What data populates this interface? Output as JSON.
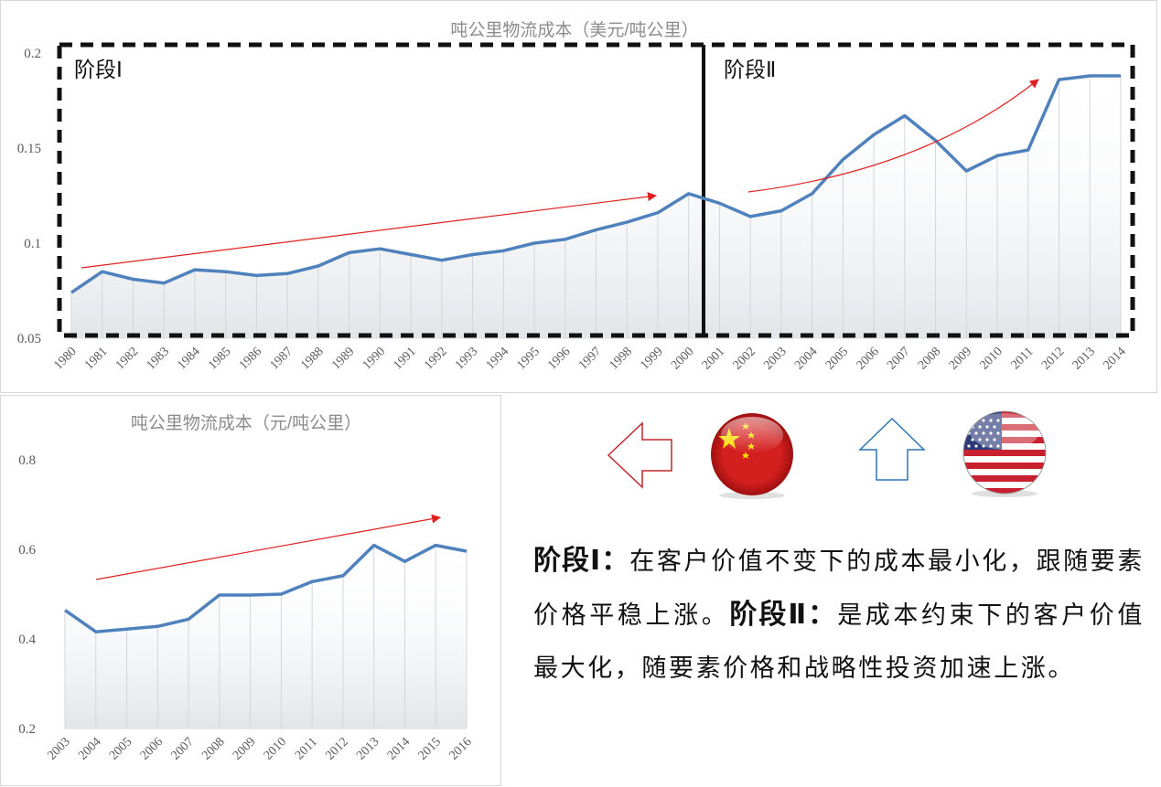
{
  "chart_data": [
    {
      "type": "line",
      "title": "吨公里物流成本（美元/吨公里）",
      "categories": [
        "1980",
        "1981",
        "1982",
        "1983",
        "1984",
        "1985",
        "1986",
        "1987",
        "1988",
        "1989",
        "1990",
        "1991",
        "1992",
        "1993",
        "1994",
        "1995",
        "1996",
        "1997",
        "1998",
        "1999",
        "2000",
        "2001",
        "2002",
        "2003",
        "2004",
        "2005",
        "2006",
        "2007",
        "2008",
        "2009",
        "2010",
        "2011",
        "2012",
        "2013",
        "2014"
      ],
      "values": [
        0.074,
        0.085,
        0.081,
        0.079,
        0.086,
        0.085,
        0.083,
        0.084,
        0.088,
        0.095,
        0.097,
        0.094,
        0.091,
        0.094,
        0.096,
        0.1,
        0.102,
        0.107,
        0.111,
        0.116,
        0.126,
        0.121,
        0.114,
        0.117,
        0.126,
        0.144,
        0.157,
        0.167,
        0.154,
        0.138,
        0.146,
        0.149,
        0.186,
        0.188,
        0.188
      ],
      "ylim": [
        0.05,
        0.2
      ],
      "yticks": [
        "0.05",
        "0.1",
        "0.15",
        "0.2"
      ],
      "xlabel": "",
      "ylabel": "",
      "stage_labels": [
        "阶段Ⅰ",
        "阶段Ⅱ"
      ],
      "color": "#4f81bd"
    },
    {
      "type": "line",
      "title": "吨公里物流成本（元/吨公里）",
      "categories": [
        "2003",
        "2004",
        "2005",
        "2006",
        "2007",
        "2008",
        "2009",
        "2010",
        "2011",
        "2012",
        "2013",
        "2014",
        "2015",
        "2016"
      ],
      "values": [
        0.464,
        0.416,
        0.422,
        0.428,
        0.444,
        0.498,
        0.498,
        0.5,
        0.528,
        0.541,
        0.609,
        0.573,
        0.609,
        0.596
      ],
      "ylim": [
        0.2,
        0.8
      ],
      "yticks": [
        "0.2",
        "0.4",
        "0.6",
        "0.8"
      ],
      "xlabel": "",
      "ylabel": "",
      "color": "#4f81bd"
    }
  ],
  "description": {
    "stage1_label": "阶段Ⅰ：",
    "stage1_text": "在客户价值不变下的成本最小化，跟随要素价格平稳上涨。",
    "stage2_label": "阶段Ⅱ：",
    "stage2_text": "是成本约束下的客户价值最大化，随要素价格和战略性投资加速上涨。"
  },
  "icons": {
    "china_arrow": "arrow-left-outline-icon",
    "china_flag": "china-flag-icon",
    "us_arrow": "arrow-up-outline-icon",
    "us_flag": "us-flag-icon"
  },
  "colors": {
    "line": "#4f81bd",
    "trend_arrow": "#e02020",
    "china_arrow": "#c0282d",
    "us_arrow": "#2e74b5"
  }
}
